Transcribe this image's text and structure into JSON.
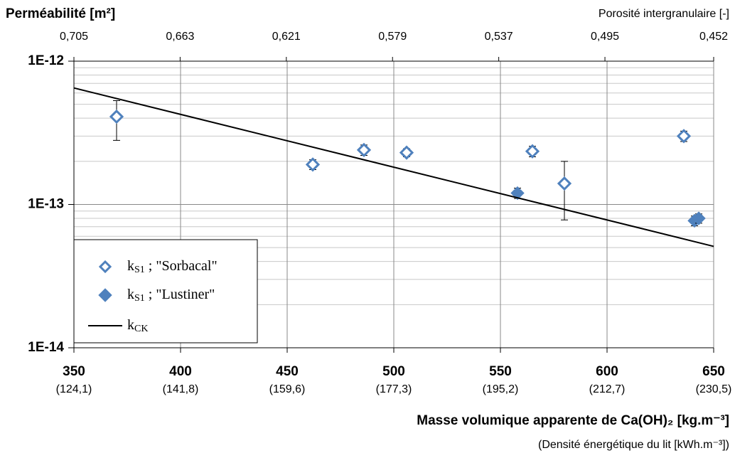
{
  "chart_data": {
    "type": "scatter",
    "title": "Perméabilité [m²]",
    "x2_label": "Porosité intergranulaire [-]",
    "x_label": "Masse volumique apparente de Ca(OH)₂ [kg.m⁻³]",
    "x_sublabel": "(Densité énergétique du lit [kWh.m⁻³])",
    "xlim": [
      350,
      650
    ],
    "xticks": [
      350,
      400,
      450,
      500,
      550,
      600,
      650
    ],
    "xtick_sublabels": [
      "(124,1)",
      "(141,8)",
      "(159,6)",
      "(177,3)",
      "(195,2)",
      "(212,7)",
      "(230,5)"
    ],
    "x2lim": [
      0.705,
      0.452
    ],
    "x2ticks": [
      {
        "value": 0.705,
        "label": "0,705"
      },
      {
        "value": 0.663,
        "label": "0,663"
      },
      {
        "value": 0.621,
        "label": "0,621"
      },
      {
        "value": 0.579,
        "label": "0,579"
      },
      {
        "value": 0.537,
        "label": "0,537"
      },
      {
        "value": 0.495,
        "label": "0,495"
      },
      {
        "value": 0.452,
        "label": "0,452"
      }
    ],
    "ylim": [
      1e-14,
      1e-12
    ],
    "yticks": [
      {
        "value": 1e-14,
        "label": "1E-14"
      },
      {
        "value": 1e-13,
        "label": "1E-13"
      },
      {
        "value": 1e-12,
        "label": "1E-12"
      }
    ],
    "log_y": true,
    "grid": true,
    "minor_grid": true,
    "legend": "lower left",
    "series": [
      {
        "name": [
          "k",
          "S1",
          " ; \"Sorbacal\""
        ],
        "color": "#4f81bd",
        "marker": "open-diamond",
        "x": [
          370,
          462,
          486,
          506,
          565,
          580,
          636
        ],
        "values": [
          4.1e-13,
          1.9e-13,
          2.4e-13,
          2.3e-13,
          2.35e-13,
          1.4e-13,
          3e-13
        ],
        "error_low": [
          2.8e-13,
          1.75e-13,
          2.2e-13,
          2.15e-13,
          2.15e-13,
          7.8e-14,
          2.75e-13
        ],
        "error_high": [
          5.3e-13,
          2.05e-13,
          2.6e-13,
          2.45e-13,
          2.55e-13,
          2e-13,
          3.25e-13
        ]
      },
      {
        "name": [
          "k",
          "S1",
          " ; \"Lustiner\""
        ],
        "color": "#4f81bd",
        "marker": "filled-diamond",
        "x": [
          558,
          641,
          643
        ],
        "values": [
          1.2e-13,
          7.7e-14,
          8e-14
        ],
        "error_low": [
          1.1e-13,
          7.1e-14,
          7.4e-14
        ],
        "error_high": [
          1.3e-13,
          8.3e-14,
          8.6e-14
        ]
      },
      {
        "name": [
          "k",
          "CK"
        ],
        "color": "#000000",
        "marker": "line",
        "x": [
          350,
          650
        ],
        "values": [
          6.5e-13,
          5.1e-14
        ]
      }
    ]
  }
}
